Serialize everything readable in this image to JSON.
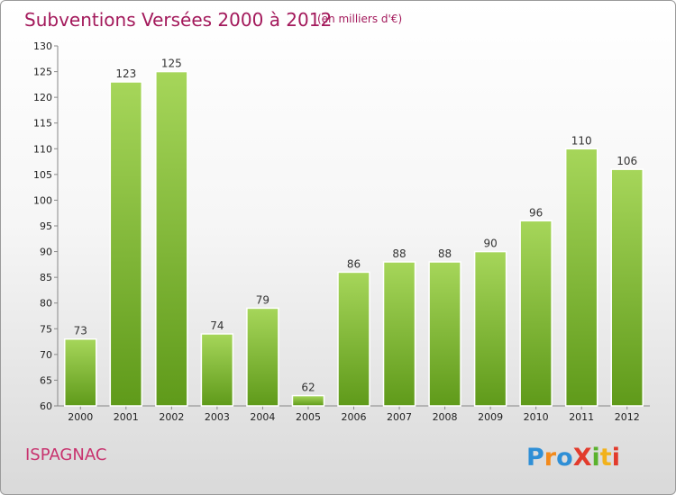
{
  "chart_data": {
    "type": "bar",
    "title": "Subventions Versées 2000 à 2012",
    "subtitle": "(en milliers d'€)",
    "categories": [
      "2000",
      "2001",
      "2002",
      "2003",
      "2004",
      "2005",
      "2006",
      "2007",
      "2008",
      "2009",
      "2010",
      "2011",
      "2012"
    ],
    "values": [
      73,
      123,
      125,
      74,
      79,
      62,
      86,
      88,
      88,
      90,
      96,
      110,
      106
    ],
    "ylim": [
      60,
      130
    ],
    "yticks": [
      60,
      65,
      70,
      75,
      80,
      85,
      90,
      95,
      100,
      105,
      110,
      115,
      120,
      125,
      130
    ],
    "grid": false,
    "colors": {
      "bar_light": "#a6d65a",
      "bar_dark": "#5f9a1a",
      "title": "#a3195b"
    }
  },
  "footer": {
    "commune": "ISPAGNAC"
  },
  "logo": {
    "name": "proxiti-logo",
    "text": "Proxiti"
  }
}
